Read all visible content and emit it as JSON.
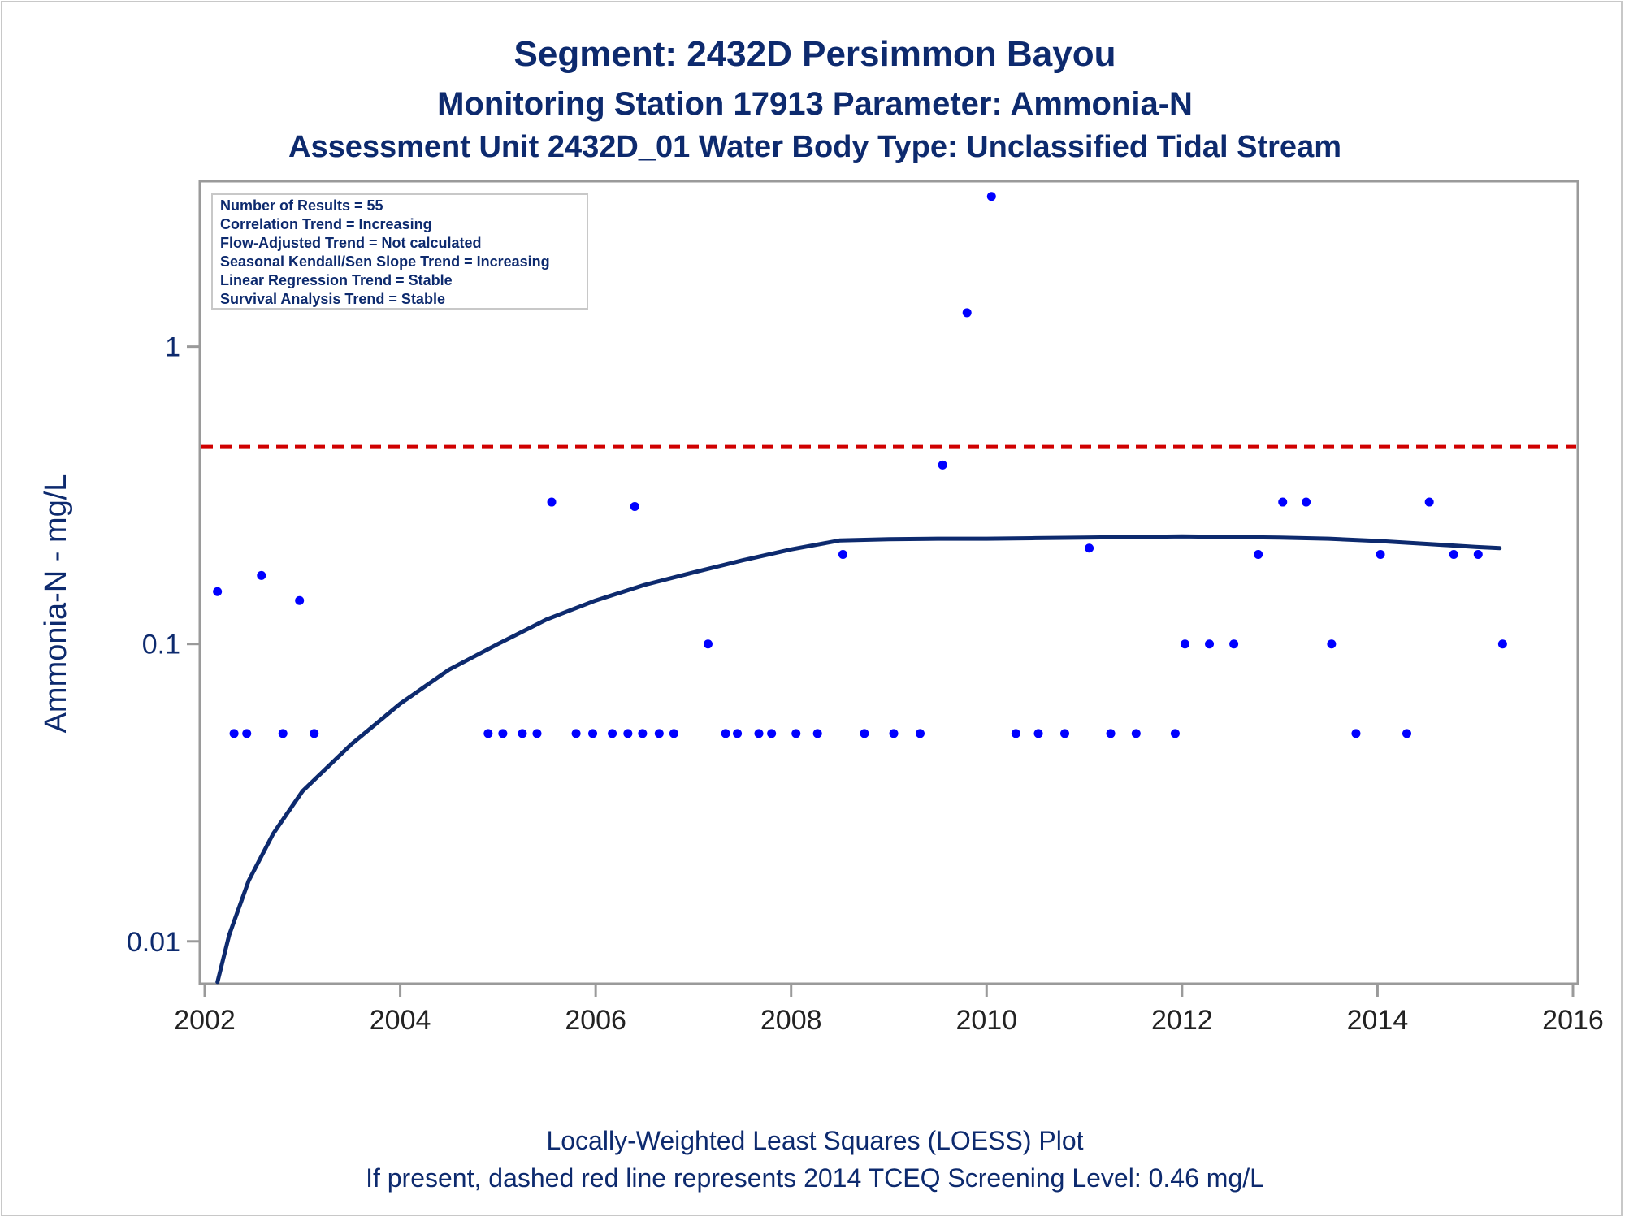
{
  "header": {
    "title": "Segment: 2432D  Persimmon Bayou",
    "subtitle1": "Monitoring Station 17913 Parameter: Ammonia-N",
    "subtitle2": "Assessment Unit 2432D_01   Water Body Type: Unclassified Tidal Stream"
  },
  "footer": {
    "line1": "Locally-Weighted Least Squares (LOESS) Plot",
    "line2": "If present, dashed red line represents 2014 TCEQ Screening Level: 0.46 mg/L"
  },
  "stats": [
    "Number of Results = 55",
    "Correlation Trend = Increasing",
    "Flow-Adjusted Trend = Not calculated",
    "Seasonal Kendall/Sen Slope Trend = Increasing",
    "Linear Regression Trend = Stable",
    "Survival Analysis Trend = Stable"
  ],
  "colors": {
    "points": "#0000ff",
    "loess": "#0d2a6e",
    "screening_line": "#d00000",
    "text": "#0d2a6e"
  },
  "chart_data": {
    "type": "scatter",
    "ylabel": "Ammonia-N - mg/L",
    "yscale": "log",
    "ylim": [
      0.0072,
      3.6
    ],
    "xlim": [
      2001.95,
      2016.05
    ],
    "x_ticks": [
      2002,
      2004,
      2006,
      2008,
      2010,
      2012,
      2014,
      2016
    ],
    "x_tick_labels": [
      "2002",
      "2004",
      "2006",
      "2008",
      "2010",
      "2012",
      "2014",
      "2016"
    ],
    "y_ticks": [
      0.01,
      0.1,
      1
    ],
    "y_tick_labels": [
      "0.01",
      "0.1",
      "1"
    ],
    "screening_level": 0.46,
    "grid": false,
    "series": [
      {
        "type": "scatter",
        "points": [
          [
            2002.13,
            0.15
          ],
          [
            2002.3,
            0.05
          ],
          [
            2002.43,
            0.05
          ],
          [
            2002.58,
            0.17
          ],
          [
            2002.8,
            0.05
          ],
          [
            2002.97,
            0.14
          ],
          [
            2003.12,
            0.05
          ],
          [
            2004.9,
            0.05
          ],
          [
            2005.05,
            0.05
          ],
          [
            2005.25,
            0.05
          ],
          [
            2005.4,
            0.05
          ],
          [
            2005.55,
            0.3
          ],
          [
            2005.8,
            0.05
          ],
          [
            2005.97,
            0.05
          ],
          [
            2006.17,
            0.05
          ],
          [
            2006.33,
            0.05
          ],
          [
            2006.4,
            0.29
          ],
          [
            2006.48,
            0.05
          ],
          [
            2006.65,
            0.05
          ],
          [
            2006.8,
            0.05
          ],
          [
            2007.15,
            0.1
          ],
          [
            2007.33,
            0.05
          ],
          [
            2007.45,
            0.05
          ],
          [
            2007.67,
            0.05
          ],
          [
            2007.8,
            0.05
          ],
          [
            2008.05,
            0.05
          ],
          [
            2008.27,
            0.05
          ],
          [
            2008.53,
            0.2
          ],
          [
            2008.75,
            0.05
          ],
          [
            2009.05,
            0.05
          ],
          [
            2009.32,
            0.05
          ],
          [
            2009.55,
            0.4
          ],
          [
            2009.8,
            1.3
          ],
          [
            2010.05,
            3.2
          ],
          [
            2010.3,
            0.05
          ],
          [
            2010.53,
            0.05
          ],
          [
            2010.8,
            0.05
          ],
          [
            2011.05,
            0.21
          ],
          [
            2011.27,
            0.05
          ],
          [
            2011.53,
            0.05
          ],
          [
            2011.93,
            0.05
          ],
          [
            2012.03,
            0.1
          ],
          [
            2012.28,
            0.1
          ],
          [
            2012.53,
            0.1
          ],
          [
            2012.78,
            0.2
          ],
          [
            2013.03,
            0.3
          ],
          [
            2013.27,
            0.3
          ],
          [
            2013.53,
            0.1
          ],
          [
            2013.78,
            0.05
          ],
          [
            2014.03,
            0.2
          ],
          [
            2014.3,
            0.05
          ],
          [
            2014.53,
            0.3
          ],
          [
            2014.78,
            0.2
          ],
          [
            2015.03,
            0.2
          ],
          [
            2015.28,
            0.1
          ]
        ]
      },
      {
        "type": "line",
        "points": [
          [
            2002.13,
            0.0073
          ],
          [
            2002.25,
            0.0105
          ],
          [
            2002.45,
            0.016
          ],
          [
            2002.7,
            0.023
          ],
          [
            2003.0,
            0.032
          ],
          [
            2003.5,
            0.046
          ],
          [
            2004.0,
            0.063
          ],
          [
            2004.5,
            0.082
          ],
          [
            2005.0,
            0.1
          ],
          [
            2005.5,
            0.121
          ],
          [
            2006.0,
            0.14
          ],
          [
            2006.5,
            0.158
          ],
          [
            2007.0,
            0.174
          ],
          [
            2007.5,
            0.191
          ],
          [
            2008.0,
            0.208
          ],
          [
            2008.5,
            0.223
          ],
          [
            2009.0,
            0.225
          ],
          [
            2009.5,
            0.226
          ],
          [
            2010.0,
            0.226
          ],
          [
            2010.5,
            0.227
          ],
          [
            2011.0,
            0.228
          ],
          [
            2011.5,
            0.229
          ],
          [
            2012.0,
            0.23
          ],
          [
            2012.5,
            0.229
          ],
          [
            2013.0,
            0.228
          ],
          [
            2013.5,
            0.226
          ],
          [
            2014.0,
            0.222
          ],
          [
            2014.5,
            0.217
          ],
          [
            2015.0,
            0.212
          ],
          [
            2015.25,
            0.21
          ]
        ]
      }
    ]
  }
}
